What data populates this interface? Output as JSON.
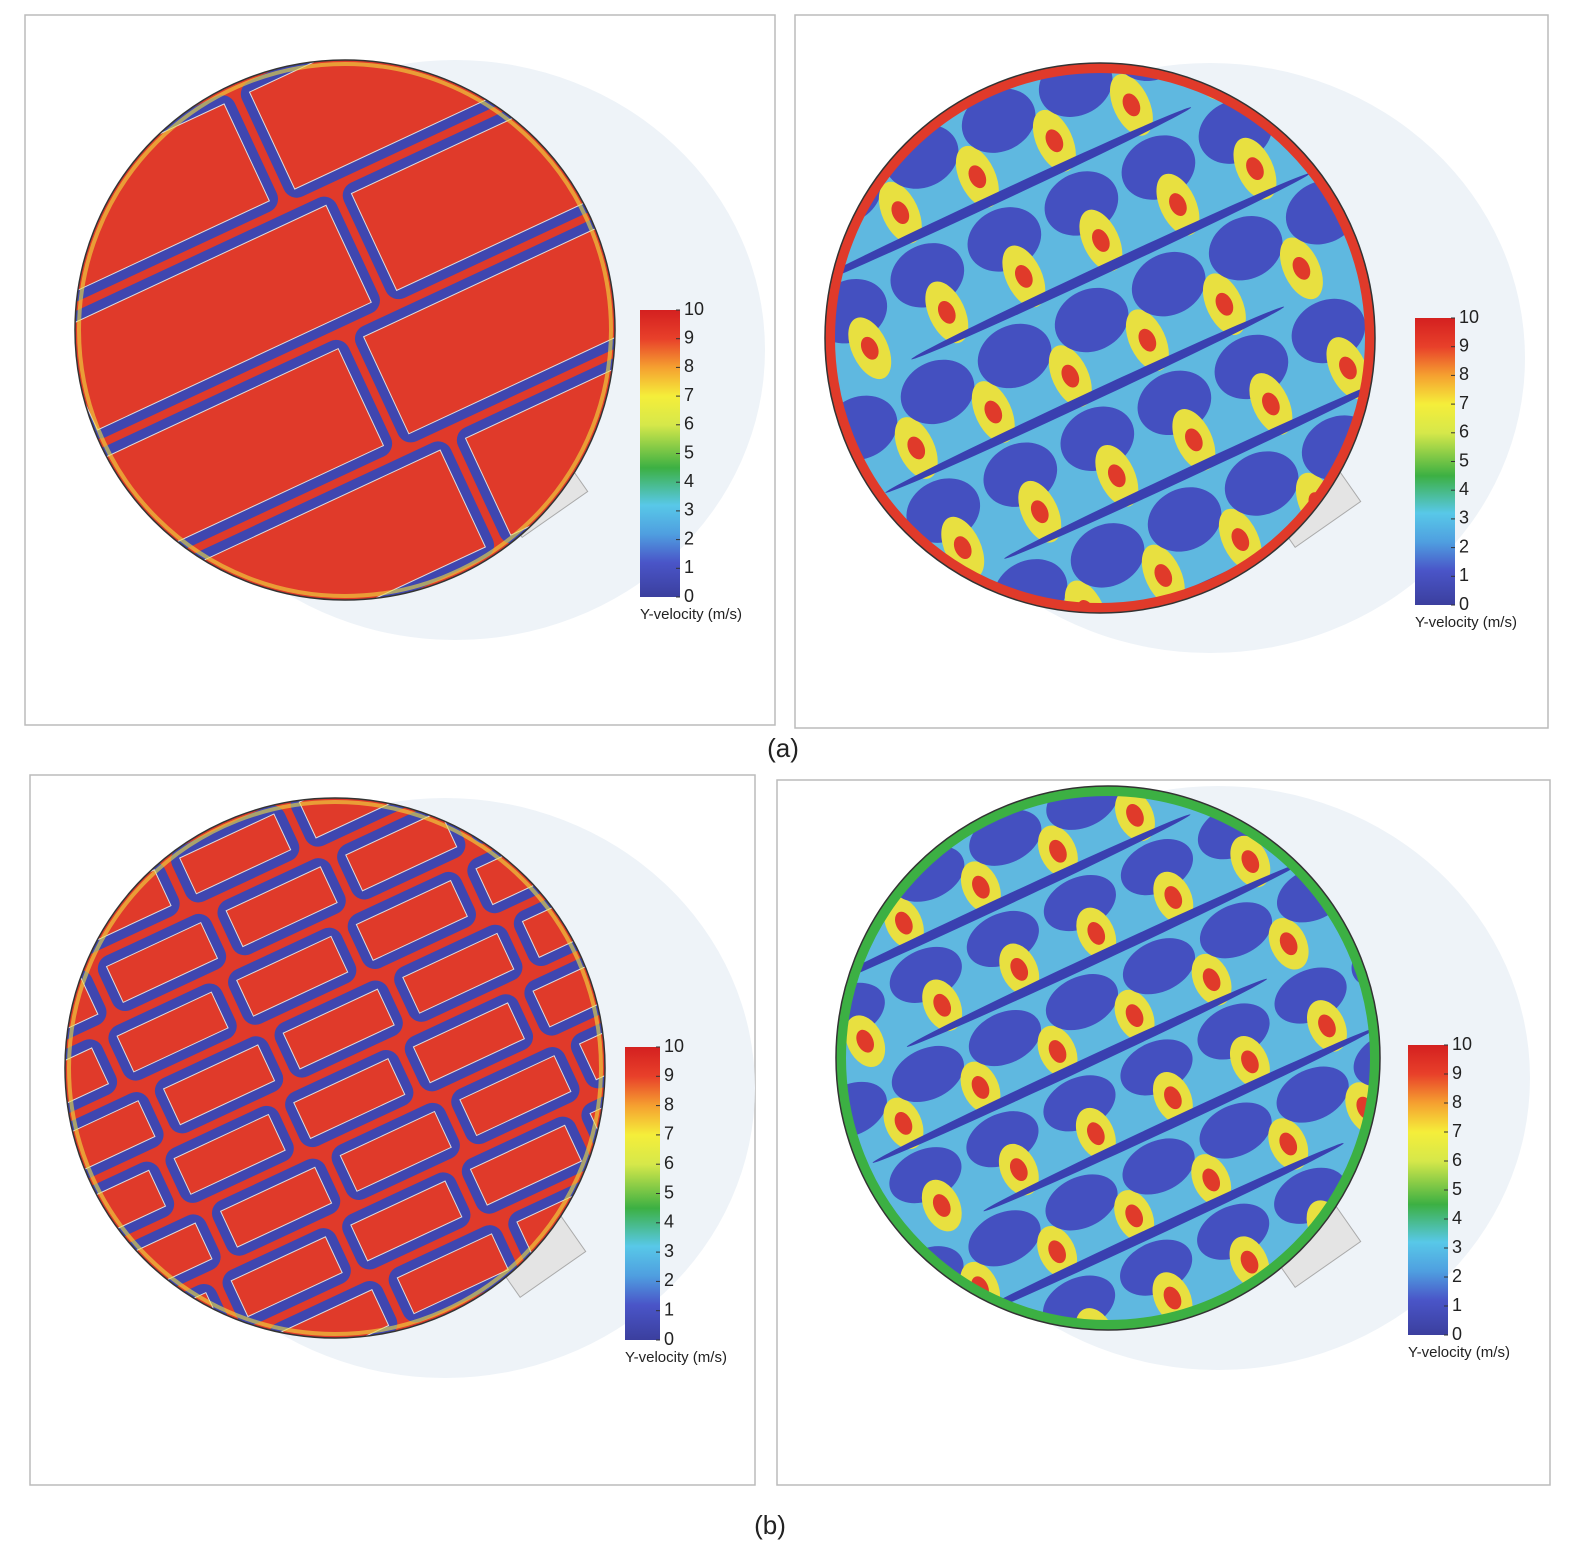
{
  "panels": [
    {
      "colorbar": {
        "label": "Y-velocity (m/s)",
        "ticks": [
          "0",
          "1",
          "2",
          "3",
          "4",
          "5",
          "6",
          "7",
          "8",
          "9",
          "10"
        ]
      }
    },
    {
      "colorbar": {
        "label": "Y-velocity (m/s)",
        "ticks": [
          "0",
          "1",
          "2",
          "3",
          "4",
          "5",
          "6",
          "7",
          "8",
          "9",
          "10"
        ]
      }
    },
    {
      "colorbar": {
        "label": "Y-velocity (m/s)",
        "ticks": [
          "0",
          "1",
          "2",
          "3",
          "4",
          "5",
          "6",
          "7",
          "8",
          "9",
          "10"
        ]
      }
    },
    {
      "colorbar": {
        "label": "Y-velocity (m/s)",
        "ticks": [
          "0",
          "1",
          "2",
          "3",
          "4",
          "5",
          "6",
          "7",
          "8",
          "9",
          "10"
        ]
      }
    }
  ],
  "captions": [
    "(a)",
    "(b)"
  ]
}
